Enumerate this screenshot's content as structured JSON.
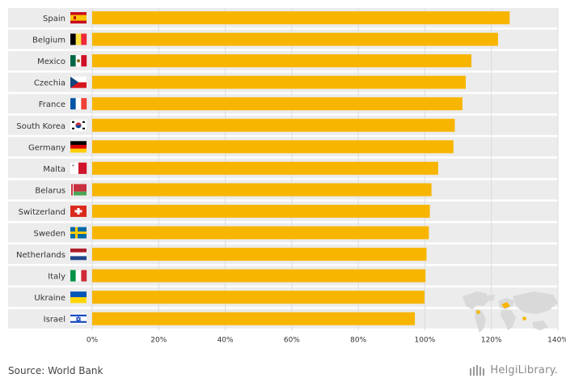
{
  "chart_data": {
    "type": "bar",
    "orientation": "horizontal",
    "title": "",
    "xlabel": "",
    "ylabel": "",
    "xlim": [
      0,
      140
    ],
    "tick_values": [
      0,
      20,
      40,
      60,
      80,
      100,
      120,
      140
    ],
    "tick_labels": [
      "0%",
      "20%",
      "40%",
      "60%",
      "80%",
      "100%",
      "120%",
      "140%"
    ],
    "grid": true,
    "bar_color": "#f7b500",
    "categories": [
      "Spain",
      "Belgium",
      "Mexico",
      "Czechia",
      "France",
      "South Korea",
      "Germany",
      "Malta",
      "Belarus",
      "Switzerland",
      "Sweden",
      "Netherlands",
      "Italy",
      "Ukraine",
      "Israel"
    ],
    "flags": [
      "flag-spain-icon",
      "flag-belgium-icon",
      "flag-mexico-icon",
      "flag-czechia-icon",
      "flag-france-icon",
      "flag-south-korea-icon",
      "flag-germany-icon",
      "flag-malta-icon",
      "flag-belarus-icon",
      "flag-switzerland-icon",
      "flag-sweden-icon",
      "flag-netherlands-icon",
      "flag-italy-icon",
      "flag-ukraine-icon",
      "flag-israel-icon"
    ],
    "values": [
      125.5,
      122,
      114,
      112.3,
      111.3,
      109,
      108.6,
      104,
      102,
      101.5,
      101.2,
      100.5,
      100.2,
      99.9,
      97
    ]
  },
  "footer": {
    "source": "Source: World Bank",
    "brand": "HelgiLibrary."
  },
  "colors": {
    "row_band": "#ececec",
    "grid": "#dddddd",
    "map": "#d9d9d9",
    "map_highlight": "#f7b500"
  }
}
